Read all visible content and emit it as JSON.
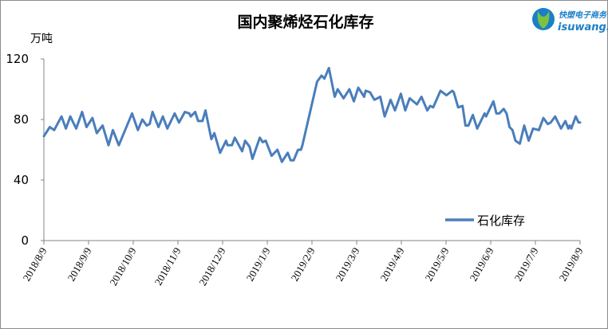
{
  "logo": {
    "name_cn": "快塑电子商务",
    "name_en": "isuwang.com"
  },
  "chart_data": {
    "type": "line",
    "title": "国内聚烯烃石化库存",
    "ylabel": "万吨",
    "xlabel": "",
    "ylim": [
      0,
      120
    ],
    "yticks": [
      0,
      40,
      80,
      120
    ],
    "grid": false,
    "legend_position": "bottom-right",
    "x_unit": "days since 2018/8/9",
    "xlim": [
      0,
      365
    ],
    "xtick_labels": [
      "2018/8/9",
      "2018/9/9",
      "2018/10/9",
      "2018/11/9",
      "2018/12/9",
      "2019/1/9",
      "2019/2/9",
      "2019/3/9",
      "2019/4/9",
      "2019/5/9",
      "2019/6/9",
      "2019/7/9",
      "2019/8/9"
    ],
    "series": [
      {
        "name": "石化库存",
        "color": "#4a7ebb",
        "x": [
          0,
          4,
          7,
          12,
          15,
          18,
          22,
          26,
          29,
          33,
          36,
          40,
          44,
          47,
          51,
          60,
          64,
          67,
          70,
          72,
          74,
          78,
          81,
          84,
          89,
          92,
          96,
          99,
          100,
          103,
          105,
          108,
          110,
          114,
          116,
          120,
          124,
          125,
          128,
          130,
          135,
          137,
          140,
          142,
          147,
          149,
          151,
          155,
          159,
          162,
          166,
          168,
          170,
          173,
          175,
          176,
          186,
          189,
          191,
          194,
          198,
          200,
          204,
          208,
          211,
          214,
          218,
          219,
          222,
          225,
          229,
          232,
          236,
          239,
          243,
          246,
          249,
          254,
          257,
          261,
          263,
          265,
          270,
          274,
          278,
          279,
          282,
          285,
          287,
          289,
          292,
          295,
          300,
          301,
          306,
          308,
          310,
          313,
          315,
          317,
          319,
          321,
          324,
          327,
          330,
          333,
          337,
          340,
          343,
          345,
          348,
          352,
          355,
          357,
          358,
          359,
          362,
          364,
          365
        ],
        "values": [
          69,
          75,
          73,
          82,
          74,
          82,
          74,
          85,
          75,
          81,
          71,
          76,
          63,
          73,
          63,
          84,
          73,
          80,
          76,
          77,
          85,
          75,
          82,
          74,
          84,
          78,
          85,
          84,
          82,
          85,
          79,
          79,
          86,
          67,
          71,
          58,
          66,
          63,
          63,
          68,
          59,
          66,
          62,
          54,
          68,
          65,
          66,
          56,
          60,
          52,
          58,
          53,
          53,
          60,
          60,
          63,
          105,
          109,
          107,
          114,
          95,
          100,
          94,
          100,
          92,
          101,
          95,
          99,
          98,
          93,
          95,
          82,
          93,
          86,
          97,
          86,
          94,
          90,
          95,
          86,
          89,
          88,
          99,
          96,
          99,
          98,
          88,
          89,
          76,
          76,
          83,
          74,
          84,
          82,
          92,
          84,
          84,
          87,
          84,
          75,
          73,
          66,
          64,
          76,
          66,
          74,
          73,
          81,
          77,
          78,
          82,
          74,
          79,
          74,
          76,
          74,
          82,
          78,
          78
        ]
      }
    ]
  }
}
